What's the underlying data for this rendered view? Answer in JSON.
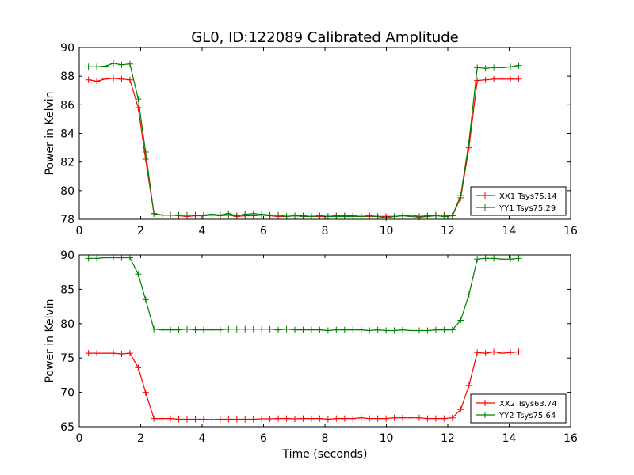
{
  "figure": {
    "title": "GL0, ID:122089 Calibrated Amplitude",
    "xlabel": "Time (seconds)"
  },
  "chart_data": [
    {
      "type": "line",
      "ylabel": "Power in Kelvin",
      "xlim": [
        0,
        16
      ],
      "ylim": [
        78,
        90
      ],
      "xticks": [
        0,
        2,
        4,
        6,
        8,
        10,
        12,
        14,
        16
      ],
      "yticks": [
        78,
        80,
        82,
        84,
        86,
        88,
        90
      ],
      "grid": false,
      "legend_position": "lower-right",
      "x": [
        0.3,
        0.57,
        0.84,
        1.11,
        1.38,
        1.65,
        1.92,
        2.16,
        2.43,
        2.7,
        2.97,
        3.24,
        3.51,
        3.78,
        4.05,
        4.32,
        4.59,
        4.86,
        5.13,
        5.4,
        5.67,
        5.94,
        6.21,
        6.48,
        6.75,
        7.02,
        7.29,
        7.56,
        7.83,
        8.1,
        8.37,
        8.64,
        8.91,
        9.18,
        9.45,
        9.72,
        9.99,
        10.26,
        10.53,
        10.8,
        11.07,
        11.34,
        11.61,
        11.88,
        12.15,
        12.42,
        12.69,
        12.96,
        13.23,
        13.5,
        13.77,
        14.04,
        14.31
      ],
      "series": [
        {
          "name": "XX1 Tsys75.14",
          "color": "#ff0000",
          "values": [
            87.75,
            87.65,
            87.8,
            87.85,
            87.8,
            87.75,
            85.8,
            82.2,
            78.4,
            78.3,
            78.3,
            78.25,
            78.2,
            78.25,
            78.25,
            78.3,
            78.25,
            78.3,
            78.2,
            78.25,
            78.25,
            78.3,
            78.25,
            78.2,
            78.2,
            78.25,
            78.25,
            78.2,
            78.2,
            78.2,
            78.25,
            78.25,
            78.25,
            78.2,
            78.2,
            78.2,
            78.2,
            78.2,
            78.25,
            78.3,
            78.2,
            78.25,
            78.3,
            78.3,
            78.25,
            79.5,
            83.0,
            87.7,
            87.75,
            87.8,
            87.8,
            87.8,
            87.8
          ]
        },
        {
          "name": "YY1 Tsys75.29",
          "color": "#008000",
          "values": [
            88.65,
            88.65,
            88.7,
            88.9,
            88.8,
            88.85,
            86.4,
            82.7,
            78.4,
            78.3,
            78.3,
            78.3,
            78.3,
            78.3,
            78.3,
            78.35,
            78.3,
            78.4,
            78.25,
            78.35,
            78.4,
            78.35,
            78.3,
            78.3,
            78.2,
            78.25,
            78.2,
            78.2,
            78.25,
            78.2,
            78.2,
            78.2,
            78.2,
            78.2,
            78.25,
            78.2,
            78.1,
            78.2,
            78.25,
            78.2,
            78.15,
            78.2,
            78.25,
            78.2,
            78.25,
            79.65,
            83.4,
            88.6,
            88.55,
            88.6,
            88.6,
            88.65,
            88.75
          ]
        }
      ]
    },
    {
      "type": "line",
      "ylabel": "Power in Kelvin",
      "xlim": [
        0,
        16
      ],
      "ylim": [
        65,
        90
      ],
      "xticks": [
        0,
        2,
        4,
        6,
        8,
        10,
        12,
        14,
        16
      ],
      "yticks": [
        65,
        70,
        75,
        80,
        85,
        90
      ],
      "grid": false,
      "legend_position": "lower-right",
      "x": [
        0.3,
        0.57,
        0.84,
        1.11,
        1.38,
        1.65,
        1.92,
        2.16,
        2.43,
        2.7,
        2.97,
        3.24,
        3.51,
        3.78,
        4.05,
        4.32,
        4.59,
        4.86,
        5.13,
        5.4,
        5.67,
        5.94,
        6.21,
        6.48,
        6.75,
        7.02,
        7.29,
        7.56,
        7.83,
        8.1,
        8.37,
        8.64,
        8.91,
        9.18,
        9.45,
        9.72,
        9.99,
        10.26,
        10.53,
        10.8,
        11.07,
        11.34,
        11.61,
        11.88,
        12.15,
        12.42,
        12.69,
        12.96,
        13.23,
        13.5,
        13.77,
        14.04,
        14.31
      ],
      "series": [
        {
          "name": "XX2 Tsys63.74",
          "color": "#ff0000",
          "values": [
            75.7,
            75.7,
            75.7,
            75.7,
            75.6,
            75.7,
            73.6,
            70.0,
            66.2,
            66.2,
            66.2,
            66.1,
            66.1,
            66.1,
            66.1,
            66.05,
            66.1,
            66.1,
            66.1,
            66.1,
            66.1,
            66.15,
            66.15,
            66.2,
            66.2,
            66.15,
            66.2,
            66.2,
            66.2,
            66.1,
            66.2,
            66.2,
            66.2,
            66.3,
            66.2,
            66.2,
            66.2,
            66.3,
            66.3,
            66.3,
            66.3,
            66.2,
            66.2,
            66.2,
            66.3,
            67.5,
            71.0,
            75.8,
            75.7,
            75.9,
            75.7,
            75.8,
            75.9
          ]
        },
        {
          "name": "YY2 Tsys75.64",
          "color": "#008000",
          "values": [
            89.5,
            89.5,
            89.6,
            89.6,
            89.6,
            89.6,
            87.2,
            83.5,
            79.2,
            79.1,
            79.1,
            79.1,
            79.2,
            79.1,
            79.1,
            79.1,
            79.1,
            79.2,
            79.2,
            79.2,
            79.2,
            79.2,
            79.2,
            79.1,
            79.2,
            79.1,
            79.1,
            79.1,
            79.1,
            79.0,
            79.1,
            79.1,
            79.1,
            79.1,
            79.0,
            79.1,
            79.0,
            79.0,
            79.1,
            79.0,
            79.0,
            79.0,
            79.1,
            79.1,
            79.1,
            80.5,
            84.2,
            89.4,
            89.5,
            89.5,
            89.4,
            89.4,
            89.5
          ]
        }
      ]
    }
  ]
}
